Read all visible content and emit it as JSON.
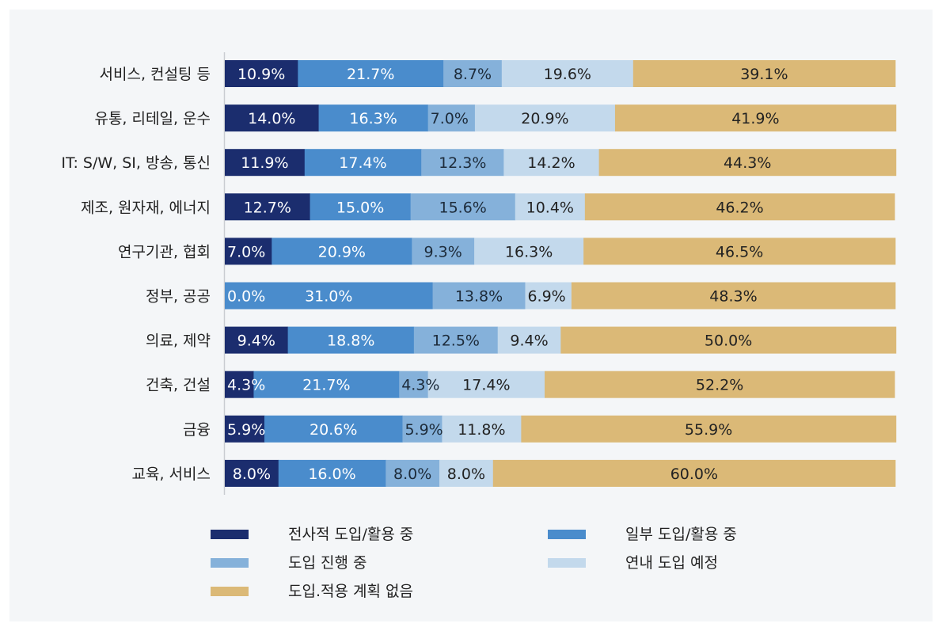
{
  "chart_data": {
    "type": "bar",
    "orientation": "horizontal",
    "stacked": true,
    "unit": "%",
    "categories": [
      "서비스, 컨설팅 등",
      "유통, 리테일, 운수",
      "IT: S/W, SI, 방송, 통신",
      "제조, 원자재, 에너지",
      "연구기관, 협회",
      "정부, 공공",
      "의료, 제약",
      "건축, 건설",
      "금융",
      "교육, 서비스"
    ],
    "series": [
      {
        "name": "전사적 도입/활용 중",
        "color": "#1b2d6e",
        "label_color": "#ffffff",
        "values": [
          10.9,
          14.0,
          11.9,
          12.7,
          7.0,
          0.0,
          9.4,
          4.3,
          5.9,
          8.0
        ],
        "labels": [
          "10.9%",
          "14.0%",
          "11.9%",
          "12.7%",
          "7.0%",
          "0.0%",
          "9.4%",
          "4.3%",
          "5.9%",
          "8.0%"
        ]
      },
      {
        "name": "일부 도입/활용 중",
        "color": "#4a8ccc",
        "label_color": "#ffffff",
        "values": [
          21.7,
          16.3,
          17.4,
          15.0,
          20.9,
          31.0,
          18.8,
          21.7,
          20.6,
          16.0
        ],
        "labels": [
          "21.7%",
          "16.3%",
          "17.4%",
          "15.0%",
          "20.9%",
          "31.0%",
          "18.8%",
          "21.7%",
          "20.6%",
          "16.0%"
        ]
      },
      {
        "name": "도입 진행 중",
        "color": "#85b1da",
        "label_color": "#1d2b3a",
        "values": [
          8.7,
          7.0,
          12.3,
          15.6,
          9.3,
          13.8,
          12.5,
          4.3,
          5.9,
          8.0
        ],
        "labels": [
          "8.7%",
          "7.0%",
          "12.3%",
          "15.6%",
          "9.3%",
          "13.8%",
          "12.5%",
          "4.3%",
          "5.9%",
          "8.0%"
        ]
      },
      {
        "name": "연내 도입 예정",
        "color": "#c3d9ec",
        "label_color": "#222222",
        "values": [
          19.6,
          20.9,
          14.2,
          10.4,
          16.3,
          6.9,
          9.4,
          17.4,
          11.8,
          8.0
        ],
        "labels": [
          "19.6%",
          "20.9%",
          "14.2%",
          "10.4%",
          "16.3%",
          "6.9%",
          "9.4%",
          "17.4%",
          "11.8%",
          "8.0%"
        ]
      },
      {
        "name": "도입.적용 계획 없음",
        "color": "#dbb977",
        "label_color": "#222222",
        "values": [
          39.1,
          41.9,
          44.3,
          46.2,
          46.5,
          48.3,
          50.0,
          52.2,
          55.9,
          60.0
        ],
        "labels": [
          "39.1%",
          "41.9%",
          "44.3%",
          "46.2%",
          "46.5%",
          "48.3%",
          "50.0%",
          "52.2%",
          "55.9%",
          "60.0%"
        ]
      }
    ],
    "xlim": [
      0,
      100
    ],
    "grid": false,
    "legend_position": "bottom"
  }
}
